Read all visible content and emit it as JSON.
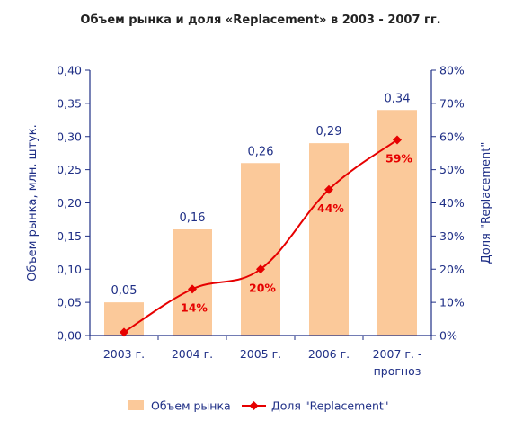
{
  "chart_data": {
    "type": "bar",
    "title": "Объем рынка и доля «Replacement» в 2003 - 2007 гг.",
    "categories": [
      [
        "2003 г."
      ],
      [
        "2004 г."
      ],
      [
        "2005 г."
      ],
      [
        "2006 г."
      ],
      [
        "2007 г. -",
        "прогноз"
      ]
    ],
    "series": [
      {
        "name": "Объем рынка",
        "type": "bar",
        "axis": "left",
        "color": "#fbc99a",
        "values": [
          0.05,
          0.16,
          0.26,
          0.29,
          0.34
        ],
        "labels": [
          "0,05",
          "0,16",
          "0,26",
          "0,29",
          "0,34"
        ]
      },
      {
        "name": "Доля \"Replacement\"",
        "type": "line",
        "axis": "right",
        "color": "#e60000",
        "values": [
          1,
          14,
          20,
          44,
          59
        ],
        "labels": [
          "",
          "14%",
          "20%",
          "44%",
          "59%"
        ]
      }
    ],
    "y_left": {
      "label": "Объем рынка, млн. штук.",
      "range": [
        0,
        0.4
      ],
      "ticks": [
        "0,00",
        "0,05",
        "0,10",
        "0,15",
        "0,20",
        "0,25",
        "0,30",
        "0,35",
        "0,40"
      ]
    },
    "y_right": {
      "label": "Доля \"Replacement\"",
      "range": [
        0,
        80
      ],
      "ticks": [
        "0%",
        "10%",
        "20%",
        "30%",
        "40%",
        "50%",
        "60%",
        "70%",
        "80%"
      ]
    },
    "grid": false,
    "legend": "bottom",
    "axis_color": "#1f2f86"
  }
}
